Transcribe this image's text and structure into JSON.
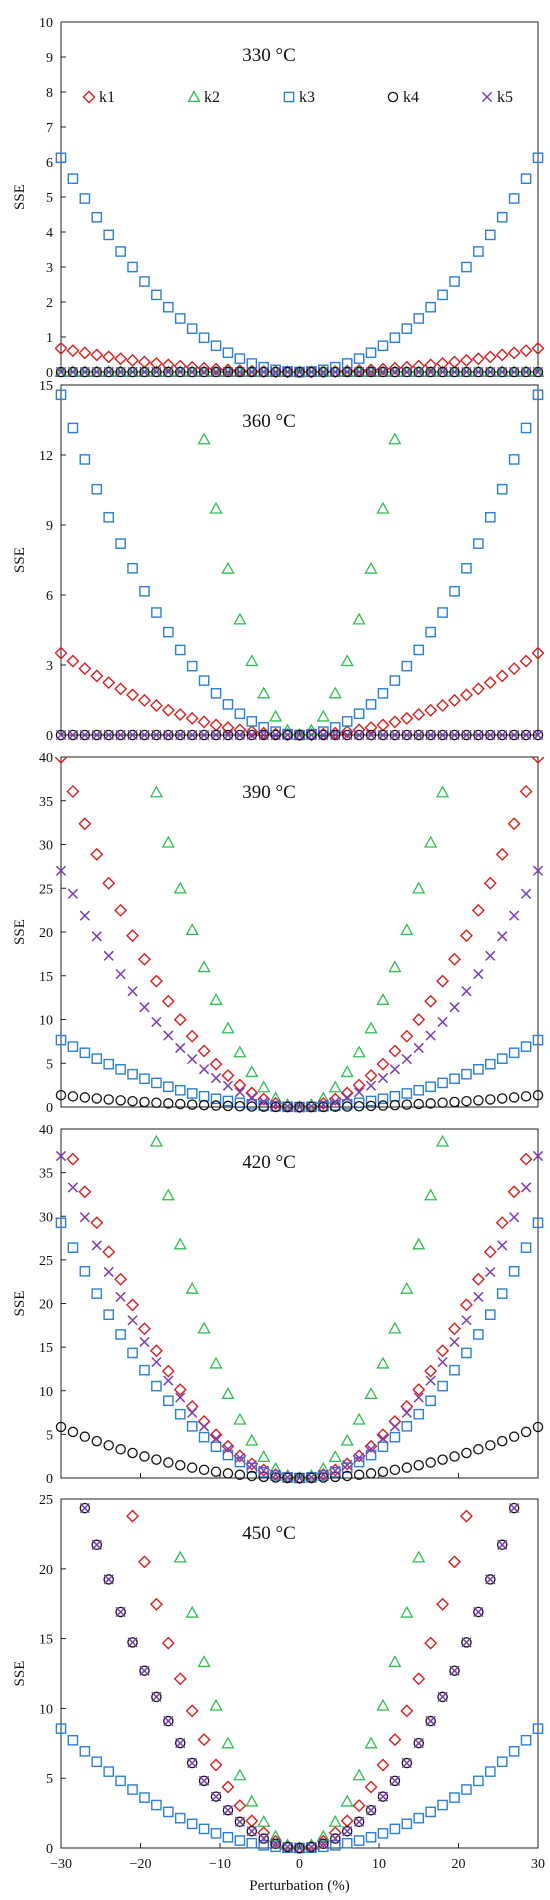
{
  "colors": {
    "k1": "#d81f1f",
    "k2": "#2fbf4f",
    "k3": "#2b7fd4",
    "k4": "#111111",
    "k5": "#7a3fb5"
  },
  "chart_data": {
    "type": "scatter",
    "xlabel": "Perturbation (%)",
    "ylabel": "SSE",
    "xlim": [
      -30,
      30
    ],
    "xticks": [
      -30,
      -20,
      -10,
      0,
      10,
      20,
      30
    ],
    "xtick_labels": [
      "−30",
      "−20",
      "−10",
      "0",
      "10",
      "20",
      "30"
    ],
    "x_step": 1.5,
    "legend": {
      "placement": "top",
      "entries": [
        "k1",
        "k2",
        "k3",
        "k4",
        "k5"
      ]
    },
    "markers": {
      "k1": "diamond",
      "k2": "triangle",
      "k3": "square",
      "k4": "circle",
      "k5": "cross"
    },
    "panels": [
      {
        "title": "330 °C",
        "ylim": [
          0,
          10
        ],
        "yticks": [
          0,
          1,
          2,
          3,
          4,
          5,
          6,
          7,
          8,
          9,
          10
        ],
        "series": [
          {
            "name": "k1",
            "a": 0.00075,
            "n": 2.0
          },
          {
            "name": "k2",
            "a": 0.0,
            "n": 2.0
          },
          {
            "name": "k3",
            "a": 0.0068,
            "n": 2.0
          },
          {
            "name": "k4",
            "a": 0.0,
            "n": 2.0
          },
          {
            "name": "k5",
            "a": 0.0,
            "n": 2.0
          }
        ]
      },
      {
        "title": "360 °C",
        "ylim": [
          0,
          15
        ],
        "yticks": [
          0,
          3,
          6,
          9,
          12,
          15
        ],
        "series": [
          {
            "name": "k1",
            "a": 0.0039,
            "n": 2.0
          },
          {
            "name": "k2",
            "a": 0.088,
            "n": 2.0
          },
          {
            "name": "k3",
            "a": 0.0162,
            "n": 2.0
          },
          {
            "name": "k4",
            "a": 0.0,
            "n": 2.0
          },
          {
            "name": "k5",
            "a": 0.0,
            "n": 2.0
          }
        ]
      },
      {
        "title": "390 °C",
        "ylim": [
          0,
          40
        ],
        "yticks": [
          0,
          5,
          10,
          15,
          20,
          25,
          30,
          35,
          40
        ],
        "series": [
          {
            "name": "k1",
            "a": 0.0444,
            "n": 2.0
          },
          {
            "name": "k2",
            "a": 0.111,
            "n": 2.0
          },
          {
            "name": "k3",
            "a": 0.0085,
            "n": 2.0
          },
          {
            "name": "k4",
            "a": 0.0015,
            "n": 2.0
          },
          {
            "name": "k5",
            "a": 0.03,
            "n": 2.0
          }
        ]
      },
      {
        "title": "420 °C",
        "ylim": [
          0,
          40
        ],
        "yticks": [
          0,
          5,
          10,
          15,
          20,
          25,
          30,
          35,
          40
        ],
        "series": [
          {
            "name": "k1",
            "a": 0.045,
            "n": 2.0
          },
          {
            "name": "k2",
            "a": 0.119,
            "n": 2.0
          },
          {
            "name": "k3",
            "a": 0.0325,
            "n": 2.0
          },
          {
            "name": "k4",
            "a": 0.0065,
            "n": 2.0
          },
          {
            "name": "k5",
            "a": 0.041,
            "n": 2.0
          }
        ]
      },
      {
        "title": "450 °C",
        "ylim": [
          0,
          25
        ],
        "yticks": [
          0,
          5,
          10,
          15,
          20,
          25
        ],
        "series": [
          {
            "name": "k1",
            "a": 0.0539,
            "n": 2.0
          },
          {
            "name": "k2",
            "a": 0.0925,
            "n": 2.0
          },
          {
            "name": "k3",
            "a": 0.0095,
            "n": 2.0
          },
          {
            "name": "k4",
            "a": 0.0334,
            "n": 2.0
          },
          {
            "name": "k5",
            "a": 0.0334,
            "n": 2.0
          }
        ]
      }
    ]
  }
}
